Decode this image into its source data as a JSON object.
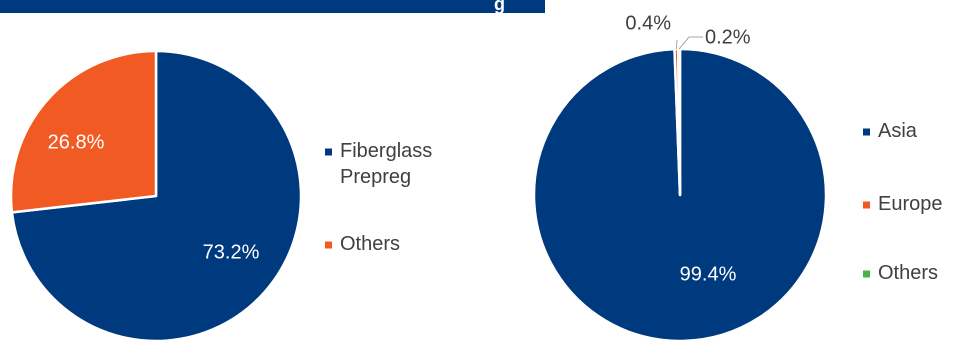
{
  "banner": {
    "title_fragment": "g"
  },
  "colors": {
    "navy": "#003A7E",
    "orange": "#F15A22",
    "green": "#4CAF50",
    "white": "#FFFFFF",
    "label_dark": "#404040"
  },
  "chart_data": [
    {
      "type": "pie",
      "slices": [
        {
          "name": "Fiberglass Prepreg",
          "value": 73.2,
          "label": "73.2%",
          "color": "#003A7E"
        },
        {
          "name": "Others",
          "value": 26.8,
          "label": "26.8%",
          "color": "#F15A22"
        }
      ],
      "legend": {
        "placement": "right",
        "entries": [
          [
            "Fiberglass",
            "Prepreg"
          ],
          [
            "Others"
          ]
        ]
      }
    },
    {
      "type": "pie",
      "slices": [
        {
          "name": "Asia",
          "value": 99.4,
          "label": "99.4%",
          "color": "#003A7E"
        },
        {
          "name": "Europe",
          "value": 0.4,
          "label": "0.4%",
          "color": "#F15A22"
        },
        {
          "name": "Others",
          "value": 0.2,
          "label": "0.2%",
          "color": "#4CAF50"
        }
      ],
      "legend": {
        "placement": "right",
        "entries": [
          [
            "Asia"
          ],
          [
            "Europe"
          ],
          [
            "Others"
          ]
        ]
      }
    }
  ]
}
